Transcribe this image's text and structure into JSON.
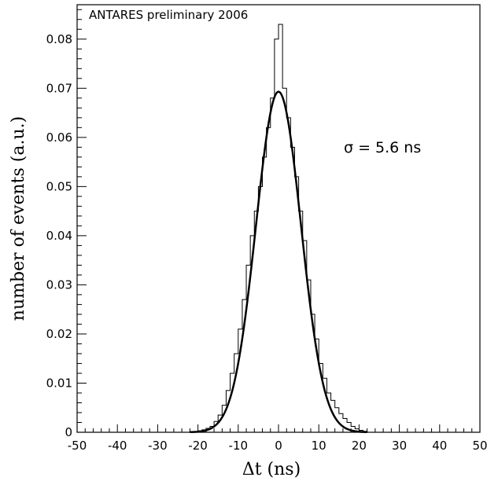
{
  "chart_data": {
    "type": "histogram",
    "watermark": "ANTARES preliminary 2006",
    "annotation": "σ = 5.6 ns",
    "xlabel": "Δt (ns)",
    "ylabel": "number of events (a.u.)",
    "xlim": [
      -50,
      50
    ],
    "ylim": [
      0,
      0.087
    ],
    "x_ticks": [
      -50,
      -40,
      -30,
      -20,
      -10,
      0,
      10,
      20,
      30,
      40,
      50
    ],
    "x_tick_labels": [
      "-50",
      "-40",
      "-30",
      "-20",
      "-10",
      "0",
      "10",
      "20",
      "30",
      "40",
      "50"
    ],
    "y_ticks": [
      0,
      0.01,
      0.02,
      0.03,
      0.04,
      0.05,
      0.06,
      0.07,
      0.08
    ],
    "y_tick_labels": [
      "0",
      "0.01",
      "0.02",
      "0.03",
      "0.04",
      "0.05",
      "0.06",
      "0.07",
      "0.08"
    ],
    "bin_width": 1,
    "histogram": {
      "bin_edges": [
        -20,
        -19,
        -18,
        -17,
        -16,
        -15,
        -14,
        -13,
        -12,
        -11,
        -10,
        -9,
        -8,
        -7,
        -6,
        -5,
        -4,
        -3,
        -2,
        -1,
        0,
        1,
        2,
        3,
        4,
        5,
        6,
        7,
        8,
        9,
        10,
        11,
        12,
        13,
        14,
        15,
        16,
        17,
        18,
        19,
        20,
        21,
        22
      ],
      "values": [
        0.0003,
        0.0005,
        0.0008,
        0.0012,
        0.0022,
        0.0035,
        0.0055,
        0.0085,
        0.012,
        0.016,
        0.021,
        0.027,
        0.034,
        0.04,
        0.045,
        0.05,
        0.056,
        0.062,
        0.068,
        0.08,
        0.083,
        0.07,
        0.064,
        0.058,
        0.052,
        0.045,
        0.039,
        0.031,
        0.024,
        0.019,
        0.014,
        0.011,
        0.008,
        0.0065,
        0.005,
        0.0038,
        0.0028,
        0.002,
        0.0012,
        0.0007,
        0.0004,
        0.0002
      ]
    },
    "fit": {
      "type": "gaussian",
      "mean": 0,
      "sigma": 5.6,
      "amplitude": 0.0693
    }
  }
}
